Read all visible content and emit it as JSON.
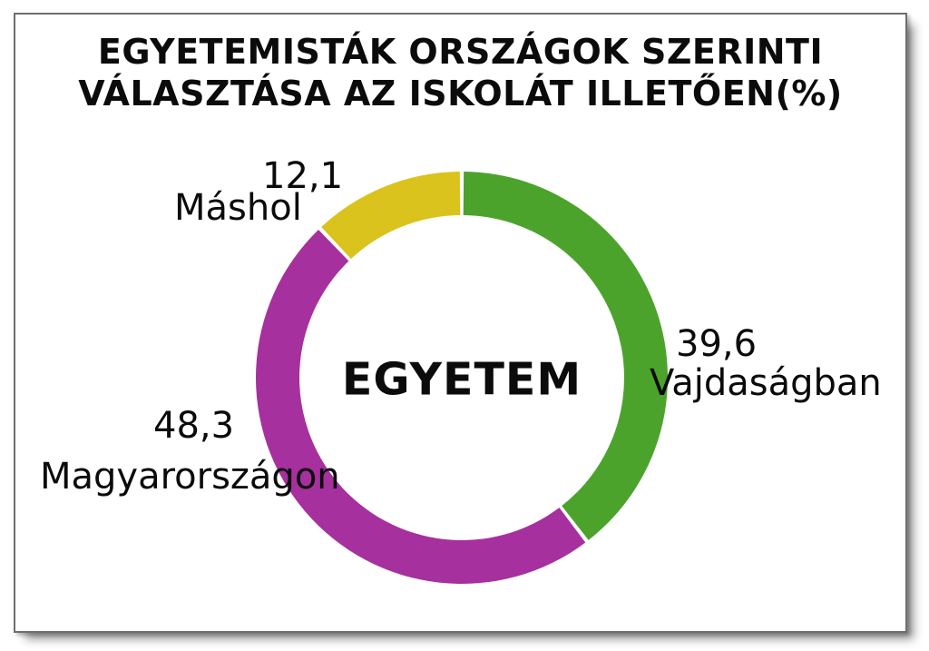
{
  "page": {
    "background_color": "#ffffff",
    "card_border_color": "#6e6e6e",
    "text_color": "#0b0b0b"
  },
  "chart_data": {
    "type": "pie",
    "subtype": "donut",
    "title": "EGYETEMISTÁK ORSZÁGOK SZERINTI VÁLASZTÁSA AZ ISKOLÁT ILLETŐEN(%)",
    "title_lines": {
      "line1": "EGYETEMISTÁK ORSZÁGOK SZERINTI",
      "line2": "VÁLASZTÁSA AZ ISKOLÁT ILLETŐEN(%)"
    },
    "unit": "%",
    "center_label": "EGYETEM",
    "start_angle_deg": 0,
    "direction": "clockwise",
    "inner_radius_ratio": 0.79,
    "legend_position": "around-slices",
    "slices": [
      {
        "label": "Vajdaságban",
        "value": 39.6,
        "display_value": "39,6",
        "color": "#4ca32c"
      },
      {
        "label": "Magyarországon",
        "value": 48.3,
        "display_value": "48,3",
        "color": "#a6309d"
      },
      {
        "label": "Máshol",
        "value": 12.1,
        "display_value": "12,1",
        "color": "#d9c31c"
      }
    ]
  }
}
